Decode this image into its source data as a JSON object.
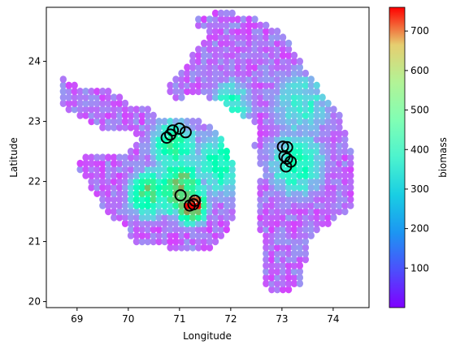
{
  "chart_data": {
    "type": "scatter",
    "title": "",
    "xlabel": "Longitude",
    "ylabel": "Latitude",
    "xlim": [
      68.4,
      74.7
    ],
    "ylim": [
      19.9,
      24.9
    ],
    "x_ticks": [
      69,
      70,
      71,
      72,
      73,
      74
    ],
    "y_ticks": [
      20,
      21,
      22,
      23,
      24
    ],
    "grid": false,
    "colormap": "rainbow",
    "colorbar": {
      "label": "biomass",
      "range": [
        0,
        760
      ],
      "ticks": [
        100,
        200,
        300,
        400,
        500,
        600,
        700
      ]
    },
    "cell_size_deg": [
      0.11,
      0.1
    ],
    "regions": [
      {
        "name": "west-polygon",
        "polygon": [
          [
            68.6,
            23.45
          ],
          [
            68.75,
            23.75
          ],
          [
            69.05,
            23.55
          ],
          [
            69.55,
            23.6
          ],
          [
            70.0,
            23.3
          ],
          [
            70.3,
            23.3
          ],
          [
            70.6,
            23.05
          ],
          [
            71.25,
            23.1
          ],
          [
            71.65,
            22.9
          ],
          [
            71.95,
            22.55
          ],
          [
            72.1,
            22.15
          ],
          [
            72.1,
            21.55
          ],
          [
            71.95,
            21.2
          ],
          [
            71.55,
            20.85
          ],
          [
            71.0,
            20.85
          ],
          [
            70.45,
            20.95
          ],
          [
            70.1,
            21.0
          ],
          [
            69.95,
            21.25
          ],
          [
            69.6,
            21.45
          ],
          [
            69.35,
            21.75
          ],
          [
            69.1,
            22.1
          ],
          [
            69.0,
            22.35
          ],
          [
            69.3,
            22.45
          ],
          [
            69.75,
            22.4
          ],
          [
            70.1,
            22.55
          ],
          [
            70.25,
            22.75
          ],
          [
            69.95,
            22.9
          ],
          [
            69.5,
            22.85
          ],
          [
            69.2,
            23.05
          ],
          [
            68.85,
            23.15
          ]
        ]
      },
      {
        "name": "north-band",
        "polygon": [
          [
            70.7,
            23.55
          ],
          [
            71.2,
            24.05
          ],
          [
            71.6,
            24.45
          ],
          [
            71.2,
            24.65
          ],
          [
            71.75,
            24.85
          ],
          [
            72.45,
            24.75
          ],
          [
            72.9,
            24.55
          ],
          [
            73.2,
            24.25
          ],
          [
            73.55,
            23.75
          ],
          [
            73.9,
            23.35
          ],
          [
            74.2,
            23.1
          ],
          [
            74.15,
            22.85
          ],
          [
            73.7,
            22.65
          ],
          [
            73.1,
            22.85
          ],
          [
            72.6,
            22.95
          ],
          [
            72.2,
            23.1
          ],
          [
            71.75,
            23.35
          ],
          [
            71.3,
            23.45
          ],
          [
            70.9,
            23.35
          ]
        ]
      },
      {
        "name": "east-region",
        "polygon": [
          [
            72.55,
            23.05
          ],
          [
            73.0,
            23.25
          ],
          [
            73.6,
            23.55
          ],
          [
            73.95,
            23.3
          ],
          [
            74.3,
            22.8
          ],
          [
            74.4,
            22.25
          ],
          [
            74.45,
            21.55
          ],
          [
            74.0,
            21.35
          ],
          [
            73.6,
            21.1
          ],
          [
            73.45,
            20.65
          ],
          [
            73.4,
            20.25
          ],
          [
            73.05,
            20.15
          ],
          [
            72.7,
            20.2
          ],
          [
            72.6,
            20.55
          ],
          [
            72.6,
            21.05
          ],
          [
            72.5,
            21.55
          ],
          [
            72.6,
            22.15
          ],
          [
            72.45,
            22.6
          ]
        ]
      }
    ],
    "biomass_hotspots": [
      {
        "lon": 71.25,
        "lat": 21.6,
        "value": 760,
        "spread": 0.22
      },
      {
        "lon": 71.0,
        "lat": 21.9,
        "value": 600,
        "spread": 0.35
      },
      {
        "lon": 70.4,
        "lat": 21.8,
        "value": 520,
        "spread": 0.3
      },
      {
        "lon": 70.9,
        "lat": 22.6,
        "value": 450,
        "spread": 0.35
      },
      {
        "lon": 71.8,
        "lat": 22.3,
        "value": 380,
        "spread": 0.45
      },
      {
        "lon": 73.3,
        "lat": 22.3,
        "value": 380,
        "spread": 0.45
      },
      {
        "lon": 73.4,
        "lat": 23.3,
        "value": 300,
        "spread": 0.5
      },
      {
        "lon": 72.0,
        "lat": 23.3,
        "value": 340,
        "spread": 0.35
      }
    ],
    "background_biomass": 110,
    "circled_points": [
      {
        "lon": 70.75,
        "lat": 22.73
      },
      {
        "lon": 70.82,
        "lat": 22.78
      },
      {
        "lon": 70.87,
        "lat": 22.85
      },
      {
        "lon": 71.0,
        "lat": 22.88
      },
      {
        "lon": 71.12,
        "lat": 22.82
      },
      {
        "lon": 71.02,
        "lat": 21.77
      },
      {
        "lon": 71.2,
        "lat": 21.6
      },
      {
        "lon": 71.27,
        "lat": 21.62
      },
      {
        "lon": 71.3,
        "lat": 21.68
      },
      {
        "lon": 73.02,
        "lat": 22.58
      },
      {
        "lon": 73.1,
        "lat": 22.57
      },
      {
        "lon": 73.05,
        "lat": 22.42
      },
      {
        "lon": 73.1,
        "lat": 22.38
      },
      {
        "lon": 73.17,
        "lat": 22.33
      },
      {
        "lon": 73.08,
        "lat": 22.25
      }
    ]
  }
}
